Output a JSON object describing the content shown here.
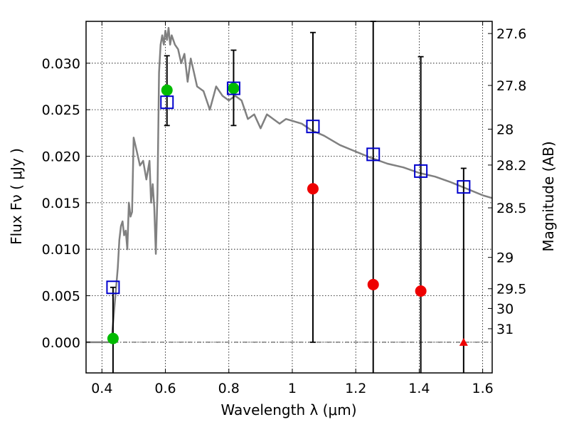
{
  "chart_data": {
    "type": "scatter",
    "xlabel": "Wavelength  λ (μm)",
    "ylabel": "Flux  Fν  ( μJy )",
    "ylabel_right": "Magnitude (AB)",
    "xlim": [
      0.35,
      1.63
    ],
    "ylim": [
      -0.0033,
      0.0345
    ],
    "grid": true,
    "x_ticks": [
      0.4,
      0.6,
      0.8,
      1.0,
      1.2,
      1.4,
      1.6
    ],
    "x_tick_labels": [
      "0.4",
      "0.6",
      "0.8",
      "1",
      "1.2",
      "1.4",
      "1.6"
    ],
    "y_ticks": [
      0.0,
      0.005,
      0.01,
      0.015,
      0.02,
      0.025,
      0.03
    ],
    "y_tick_labels": [
      "0.000",
      "0.005",
      "0.010",
      "0.015",
      "0.020",
      "0.025",
      "0.030"
    ],
    "right_ticks": [
      {
        "label": "27.6",
        "flux": 0.03319
      },
      {
        "label": "27.8",
        "flux": 0.02761
      },
      {
        "label": "28",
        "flux": 0.02291
      },
      {
        "label": "28.2",
        "flux": 0.01905
      },
      {
        "label": "28.5",
        "flux": 0.01445
      },
      {
        "label": "29",
        "flux": 0.00912
      },
      {
        "label": "29.5",
        "flux": 0.00575
      },
      {
        "label": "30",
        "flux": 0.00363
      },
      {
        "label": "31",
        "flux": 0.00145
      }
    ],
    "series": [
      {
        "kind": "sed_line",
        "color": "#808080",
        "x": [
          0.35,
          0.42,
          0.43,
          0.435,
          0.44,
          0.445,
          0.45,
          0.455,
          0.46,
          0.465,
          0.47,
          0.475,
          0.48,
          0.485,
          0.49,
          0.495,
          0.5,
          0.51,
          0.52,
          0.53,
          0.54,
          0.55,
          0.555,
          0.56,
          0.565,
          0.57,
          0.575,
          0.58,
          0.585,
          0.59,
          0.595,
          0.6,
          0.605,
          0.61,
          0.615,
          0.62,
          0.63,
          0.64,
          0.65,
          0.66,
          0.67,
          0.68,
          0.69,
          0.7,
          0.72,
          0.74,
          0.76,
          0.78,
          0.8,
          0.82,
          0.84,
          0.86,
          0.88,
          0.9,
          0.92,
          0.94,
          0.96,
          0.98,
          1.0,
          1.03,
          1.06,
          1.1,
          1.15,
          1.2,
          1.25,
          1.3,
          1.35,
          1.4,
          1.45,
          1.5,
          1.55,
          1.6,
          1.63
        ],
        "y": [
          0.0,
          0.0,
          0.0001,
          0.002,
          0.004,
          0.006,
          0.008,
          0.011,
          0.0125,
          0.013,
          0.0115,
          0.012,
          0.01,
          0.015,
          0.0135,
          0.014,
          0.022,
          0.0205,
          0.019,
          0.0195,
          0.0175,
          0.0195,
          0.015,
          0.017,
          0.0145,
          0.0095,
          0.016,
          0.029,
          0.032,
          0.033,
          0.032,
          0.0335,
          0.0325,
          0.0338,
          0.032,
          0.033,
          0.032,
          0.0315,
          0.03,
          0.031,
          0.028,
          0.0305,
          0.029,
          0.0275,
          0.027,
          0.025,
          0.0275,
          0.0265,
          0.026,
          0.0265,
          0.026,
          0.024,
          0.0245,
          0.023,
          0.0245,
          0.024,
          0.0235,
          0.024,
          0.0238,
          0.0235,
          0.0228,
          0.0222,
          0.0212,
          0.0205,
          0.0198,
          0.0192,
          0.0188,
          0.0182,
          0.0178,
          0.0172,
          0.0165,
          0.0158,
          0.0155
        ]
      },
      {
        "kind": "model_squares",
        "color": "#0000cc",
        "x": [
          0.435,
          0.605,
          0.815,
          1.065,
          1.255,
          1.405,
          1.54
        ],
        "y": [
          0.0059,
          0.0258,
          0.0273,
          0.0232,
          0.0202,
          0.0184,
          0.0167
        ]
      },
      {
        "kind": "green_detections",
        "color": "#00bb00",
        "x": [
          0.435,
          0.605,
          0.815
        ],
        "y": [
          0.0004,
          0.0271,
          0.0273
        ],
        "err_low": [
          null,
          0.0233,
          0.0233
        ],
        "err_high": [
          null,
          0.0308,
          0.0314
        ]
      },
      {
        "kind": "red_points",
        "color": "#ee0000",
        "x": [
          1.065,
          1.255,
          1.405
        ],
        "y": [
          0.0165,
          0.0062,
          0.0055
        ],
        "err_low": [
          0.0,
          -0.0035,
          -0.0035
        ],
        "err_high": [
          0.0333,
          0.0345,
          0.0307
        ]
      },
      {
        "kind": "red_triangle",
        "color": "#ee0000",
        "x": [
          1.54
        ],
        "y": [
          0.0
        ],
        "err_low": [
          -0.0035
        ],
        "err_high": [
          0.0187
        ]
      },
      {
        "kind": "lone_errorbar",
        "color": "#000000",
        "x": [
          0.435
        ],
        "err_low": [
          -0.0035
        ],
        "err_high": [
          0.0059
        ]
      }
    ]
  }
}
